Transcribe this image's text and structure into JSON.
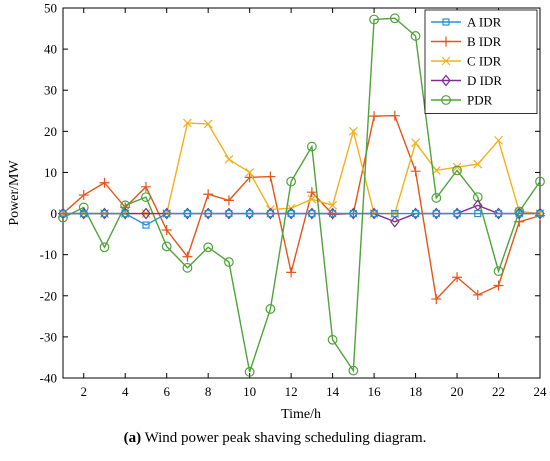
{
  "chart_data": {
    "type": "line",
    "xlabel": "Time/h",
    "ylabel": "Power/MW",
    "xlim": [
      1,
      24
    ],
    "ylim": [
      -40,
      50
    ],
    "xticks": [
      2,
      4,
      6,
      8,
      10,
      12,
      14,
      16,
      18,
      20,
      22,
      24
    ],
    "yticks": [
      -40,
      -30,
      -20,
      -10,
      0,
      10,
      20,
      30,
      40,
      50
    ],
    "grid": false,
    "legend_position": "top-right",
    "x": [
      1,
      2,
      3,
      4,
      5,
      6,
      7,
      8,
      9,
      10,
      11,
      12,
      13,
      14,
      15,
      16,
      17,
      18,
      19,
      20,
      21,
      22,
      23,
      24
    ],
    "series": [
      {
        "name": "A IDR",
        "color": "#2f8fc8",
        "marker": "square",
        "values": [
          0,
          0,
          0,
          0,
          -2.8,
          0,
          0,
          0,
          0,
          0,
          0,
          0,
          0,
          0,
          0,
          0,
          0,
          0,
          0,
          0,
          0,
          0,
          0,
          0
        ]
      },
      {
        "name": "B IDR",
        "color": "#e5541b",
        "marker": "plus",
        "values": [
          0,
          4.5,
          7.5,
          1.5,
          6.5,
          -4,
          -10.5,
          4.7,
          3.2,
          8.8,
          9,
          -14.3,
          5.2,
          -0.2,
          0,
          23.7,
          23.8,
          10.3,
          -20.8,
          -15.5,
          -19.8,
          -17.5,
          -2,
          -0.5
        ]
      },
      {
        "name": "C IDR",
        "color": "#f2b01e",
        "marker": "x",
        "values": [
          0,
          0,
          0,
          0,
          0,
          0,
          22,
          21.8,
          13.2,
          10,
          1,
          1.3,
          3.5,
          2,
          20,
          0,
          0,
          17.2,
          10.5,
          11.3,
          12,
          17.8,
          0.5,
          0
        ]
      },
      {
        "name": "D IDR",
        "color": "#7e2d8f",
        "marker": "diamond",
        "values": [
          0,
          0,
          0,
          0,
          0,
          0,
          0,
          0,
          0,
          0,
          0,
          0,
          0,
          0,
          0,
          0,
          -2,
          0,
          0,
          0,
          2,
          0,
          0,
          0
        ]
      },
      {
        "name": "PDR",
        "color": "#4fa33a",
        "marker": "circle",
        "values": [
          -1,
          1.5,
          -8.2,
          2,
          4,
          -8,
          -13.2,
          -8.2,
          -11.8,
          -38.5,
          -23.2,
          7.8,
          16.3,
          -30.7,
          -38.2,
          47.2,
          47.5,
          43.2,
          3.8,
          10.5,
          4,
          -14,
          0.5,
          7.8
        ]
      }
    ]
  },
  "caption": {
    "label": "(a)",
    "text": " Wind power peak shaving scheduling diagram."
  }
}
